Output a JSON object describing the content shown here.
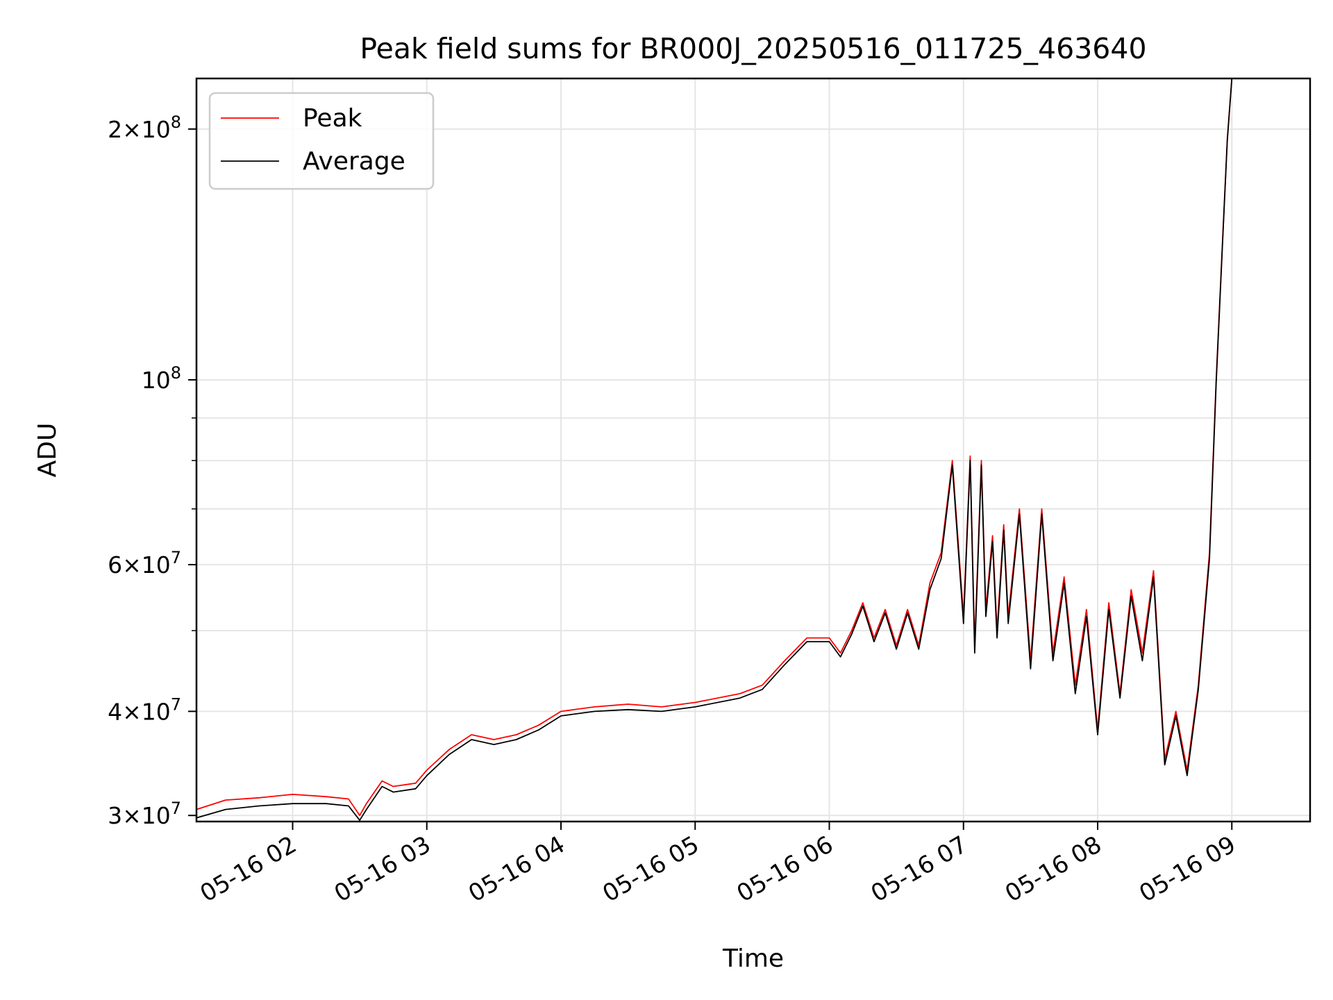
{
  "chart_data": {
    "type": "line",
    "title": "Peak field sums for BR000J_20250516_011725_463640",
    "xlabel": "Time",
    "ylabel": "ADU",
    "yscale": "log",
    "xlim": [
      "2025-05-16 01:17",
      "2025-05-16 09:35"
    ],
    "ylim": [
      29500000,
      230000000
    ],
    "grid": true,
    "legend_position": "upper left",
    "x_ticks": [
      "05-16 02",
      "05-16 03",
      "05-16 04",
      "05-16 05",
      "05-16 06",
      "05-16 07",
      "05-16 08",
      "05-16 09"
    ],
    "y_ticks": [
      {
        "value": 30000000,
        "base": "3",
        "exp": "7"
      },
      {
        "value": 40000000,
        "base": "4",
        "exp": "7"
      },
      {
        "value": 60000000,
        "base": "6",
        "exp": "7"
      },
      {
        "value": 100000000,
        "base": "",
        "exp": "8"
      },
      {
        "value": 200000000,
        "base": "2",
        "exp": "8"
      }
    ],
    "minor_y_ticks": [
      50000000,
      70000000,
      80000000,
      90000000
    ],
    "series": [
      {
        "name": "Peak",
        "color": "#ff0000",
        "x": [
          "2025-05-16 01:17",
          "2025-05-16 01:30",
          "2025-05-16 01:45",
          "2025-05-16 02:00",
          "2025-05-16 02:15",
          "2025-05-16 02:25",
          "2025-05-16 02:30",
          "2025-05-16 02:33",
          "2025-05-16 02:40",
          "2025-05-16 02:45",
          "2025-05-16 02:55",
          "2025-05-16 03:00",
          "2025-05-16 03:10",
          "2025-05-16 03:20",
          "2025-05-16 03:30",
          "2025-05-16 03:40",
          "2025-05-16 03:50",
          "2025-05-16 04:00",
          "2025-05-16 04:15",
          "2025-05-16 04:30",
          "2025-05-16 04:45",
          "2025-05-16 05:00",
          "2025-05-16 05:20",
          "2025-05-16 05:30",
          "2025-05-16 05:40",
          "2025-05-16 05:50",
          "2025-05-16 06:00",
          "2025-05-16 06:05",
          "2025-05-16 06:10",
          "2025-05-16 06:15",
          "2025-05-16 06:20",
          "2025-05-16 06:25",
          "2025-05-16 06:30",
          "2025-05-16 06:35",
          "2025-05-16 06:40",
          "2025-05-16 06:45",
          "2025-05-16 06:50",
          "2025-05-16 06:55",
          "2025-05-16 07:00",
          "2025-05-16 07:03",
          "2025-05-16 07:05",
          "2025-05-16 07:08",
          "2025-05-16 07:10",
          "2025-05-16 07:13",
          "2025-05-16 07:15",
          "2025-05-16 07:18",
          "2025-05-16 07:20",
          "2025-05-16 07:25",
          "2025-05-16 07:30",
          "2025-05-16 07:35",
          "2025-05-16 07:40",
          "2025-05-16 07:45",
          "2025-05-16 07:50",
          "2025-05-16 07:55",
          "2025-05-16 08:00",
          "2025-05-16 08:05",
          "2025-05-16 08:10",
          "2025-05-16 08:15",
          "2025-05-16 08:20",
          "2025-05-16 08:25",
          "2025-05-16 08:30",
          "2025-05-16 08:35",
          "2025-05-16 08:40",
          "2025-05-16 08:45",
          "2025-05-16 08:50",
          "2025-05-16 08:53",
          "2025-05-16 08:56",
          "2025-05-16 08:58",
          "2025-05-16 09:00"
        ],
        "values": [
          30500000,
          31300000,
          31500000,
          31800000,
          31600000,
          31400000,
          30000000,
          31000000,
          33000000,
          32500000,
          32800000,
          34000000,
          36000000,
          37500000,
          37000000,
          37500000,
          38500000,
          40000000,
          40500000,
          40800000,
          40500000,
          41000000,
          42000000,
          43000000,
          46000000,
          49000000,
          49000000,
          47000000,
          50000000,
          54000000,
          49000000,
          53000000,
          48000000,
          53000000,
          48000000,
          57000000,
          62000000,
          80000000,
          52000000,
          81000000,
          48000000,
          80000000,
          53000000,
          65000000,
          50000000,
          67000000,
          52000000,
          70000000,
          46000000,
          70000000,
          47000000,
          58000000,
          43000000,
          53000000,
          38000000,
          54000000,
          42000000,
          56000000,
          47000000,
          59000000,
          35000000,
          40000000,
          34000000,
          43000000,
          62000000,
          100000000,
          150000000,
          195000000,
          230000000
        ]
      },
      {
        "name": "Average",
        "color": "#000000",
        "x": [
          "2025-05-16 01:17",
          "2025-05-16 01:30",
          "2025-05-16 01:45",
          "2025-05-16 02:00",
          "2025-05-16 02:15",
          "2025-05-16 02:25",
          "2025-05-16 02:30",
          "2025-05-16 02:33",
          "2025-05-16 02:40",
          "2025-05-16 02:45",
          "2025-05-16 02:55",
          "2025-05-16 03:00",
          "2025-05-16 03:10",
          "2025-05-16 03:20",
          "2025-05-16 03:30",
          "2025-05-16 03:40",
          "2025-05-16 03:50",
          "2025-05-16 04:00",
          "2025-05-16 04:15",
          "2025-05-16 04:30",
          "2025-05-16 04:45",
          "2025-05-16 05:00",
          "2025-05-16 05:20",
          "2025-05-16 05:30",
          "2025-05-16 05:40",
          "2025-05-16 05:50",
          "2025-05-16 06:00",
          "2025-05-16 06:05",
          "2025-05-16 06:10",
          "2025-05-16 06:15",
          "2025-05-16 06:20",
          "2025-05-16 06:25",
          "2025-05-16 06:30",
          "2025-05-16 06:35",
          "2025-05-16 06:40",
          "2025-05-16 06:45",
          "2025-05-16 06:50",
          "2025-05-16 06:55",
          "2025-05-16 07:00",
          "2025-05-16 07:03",
          "2025-05-16 07:05",
          "2025-05-16 07:08",
          "2025-05-16 07:10",
          "2025-05-16 07:13",
          "2025-05-16 07:15",
          "2025-05-16 07:18",
          "2025-05-16 07:20",
          "2025-05-16 07:25",
          "2025-05-16 07:30",
          "2025-05-16 07:35",
          "2025-05-16 07:40",
          "2025-05-16 07:45",
          "2025-05-16 07:50",
          "2025-05-16 07:55",
          "2025-05-16 08:00",
          "2025-05-16 08:05",
          "2025-05-16 08:10",
          "2025-05-16 08:15",
          "2025-05-16 08:20",
          "2025-05-16 08:25",
          "2025-05-16 08:30",
          "2025-05-16 08:35",
          "2025-05-16 08:40",
          "2025-05-16 08:45",
          "2025-05-16 08:50",
          "2025-05-16 08:53",
          "2025-05-16 08:56",
          "2025-05-16 08:58",
          "2025-05-16 09:00"
        ],
        "values": [
          29800000,
          30500000,
          30800000,
          31000000,
          31000000,
          30800000,
          29600000,
          30500000,
          32500000,
          32000000,
          32300000,
          33500000,
          35500000,
          37000000,
          36500000,
          37000000,
          38000000,
          39500000,
          40000000,
          40200000,
          40000000,
          40500000,
          41500000,
          42500000,
          45500000,
          48500000,
          48500000,
          46500000,
          49500000,
          53500000,
          48500000,
          52500000,
          47500000,
          52500000,
          47500000,
          56000000,
          61000000,
          79000000,
          51000000,
          80000000,
          47000000,
          79000000,
          52000000,
          64000000,
          49000000,
          66000000,
          51000000,
          69000000,
          45000000,
          69000000,
          46000000,
          57000000,
          42000000,
          52000000,
          37500000,
          53000000,
          41500000,
          55000000,
          46000000,
          58000000,
          34500000,
          39500000,
          33500000,
          42500000,
          61000000,
          99000000,
          149000000,
          194000000,
          230000000
        ]
      }
    ]
  }
}
